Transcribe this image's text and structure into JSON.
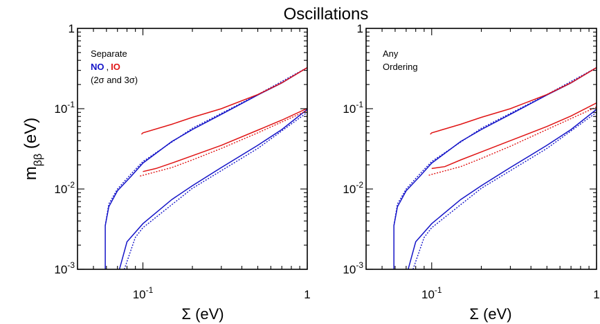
{
  "title": "Oscillations",
  "ylabel_main": "m",
  "ylabel_sub": "ββ",
  "ylabel_unit": " (eV)",
  "colors": {
    "NO": "#1414c8",
    "IO": "#e01414",
    "text": "#000000"
  },
  "panels": [
    {
      "legend_lines": [
        "Separate",
        "(2σ and 3σ)"
      ],
      "legend_no": "NO",
      "legend_comma": ",",
      "legend_io": "IO",
      "xlabel": "Σ (eV)"
    },
    {
      "legend_lines": [
        "Any",
        "Ordering"
      ],
      "xlabel": "Σ (eV)"
    }
  ],
  "chart_data": [
    {
      "type": "line",
      "title": "Oscillations",
      "xlabel": "Σ (eV)",
      "ylabel": "mββ (eV)",
      "xscale": "log",
      "yscale": "log",
      "xlim": [
        0.04,
        1.0
      ],
      "ylim": [
        0.001,
        1.0
      ],
      "x_tick_labels": [
        "10^-1",
        "1"
      ],
      "y_tick_labels": [
        "10^-3",
        "10^-2",
        "10^-1",
        "1"
      ],
      "legend": [
        "NO",
        "IO"
      ],
      "series": [
        {
          "name": "NO",
          "style": "solid",
          "x": [
            0.059,
            0.059,
            0.062,
            0.07,
            0.085,
            0.1,
            0.15,
            0.2,
            0.3,
            0.5,
            0.7,
            1.0
          ],
          "y": [
            0.001,
            0.0035,
            0.006,
            0.0095,
            0.0145,
            0.021,
            0.039,
            0.055,
            0.085,
            0.148,
            0.209,
            0.325
          ]
        },
        {
          "name": "NO",
          "style": "solid",
          "x": [
            0.072,
            0.08,
            0.1,
            0.15,
            0.2,
            0.3,
            0.5,
            0.7,
            1.0
          ],
          "y": [
            0.001,
            0.0022,
            0.0037,
            0.0074,
            0.011,
            0.0185,
            0.035,
            0.055,
            0.098
          ]
        },
        {
          "name": "NO",
          "style": "dotted",
          "x": [
            0.059,
            0.062,
            0.07,
            0.085,
            0.1,
            0.2,
            0.5,
            1.0
          ],
          "y": [
            0.0035,
            0.0065,
            0.01,
            0.0155,
            0.022,
            0.057,
            0.15,
            0.325
          ]
        },
        {
          "name": "NO",
          "style": "dotted",
          "x": [
            0.077,
            0.09,
            0.1,
            0.2,
            0.5,
            1.0
          ],
          "y": [
            0.001,
            0.0025,
            0.0033,
            0.0102,
            0.032,
            0.09
          ]
        },
        {
          "name": "IO",
          "style": "solid",
          "x": [
            0.098,
            0.1,
            0.15,
            0.2,
            0.3,
            0.5,
            0.7,
            1.0
          ],
          "y": [
            0.048,
            0.05,
            0.064,
            0.078,
            0.1,
            0.15,
            0.21,
            0.325
          ]
        },
        {
          "name": "IO",
          "style": "solid",
          "x": [
            0.1,
            0.12,
            0.15,
            0.2,
            0.3,
            0.5,
            0.7,
            1.0
          ],
          "y": [
            0.0165,
            0.018,
            0.021,
            0.026,
            0.035,
            0.054,
            0.072,
            0.101
          ]
        },
        {
          "name": "IO",
          "style": "dotted",
          "x": [
            0.096,
            0.1,
            0.15,
            0.2,
            0.3,
            0.5,
            1.0
          ],
          "y": [
            0.0145,
            0.0148,
            0.0185,
            0.023,
            0.032,
            0.05,
            0.095
          ]
        }
      ]
    },
    {
      "type": "line",
      "title": "Oscillations",
      "xlabel": "Σ (eV)",
      "ylabel": "mββ (eV)",
      "xscale": "log",
      "yscale": "log",
      "xlim": [
        0.04,
        1.0
      ],
      "ylim": [
        0.001,
        1.0
      ],
      "x_tick_labels": [
        "10^-1",
        "1"
      ],
      "y_tick_labels": [
        "10^-3",
        "10^-2",
        "10^-1",
        "1"
      ],
      "series": [
        {
          "name": "NO",
          "style": "solid",
          "x": [
            0.059,
            0.059,
            0.062,
            0.07,
            0.085,
            0.1,
            0.15,
            0.2,
            0.3,
            0.5,
            0.7,
            1.0
          ],
          "y": [
            0.001,
            0.0035,
            0.006,
            0.0095,
            0.0145,
            0.021,
            0.039,
            0.055,
            0.085,
            0.148,
            0.209,
            0.325
          ]
        },
        {
          "name": "NO",
          "style": "solid",
          "x": [
            0.072,
            0.08,
            0.1,
            0.15,
            0.2,
            0.3,
            0.5,
            0.7,
            1.0
          ],
          "y": [
            0.001,
            0.0022,
            0.0037,
            0.0074,
            0.011,
            0.0185,
            0.035,
            0.055,
            0.098
          ]
        },
        {
          "name": "NO",
          "style": "dotted",
          "x": [
            0.059,
            0.062,
            0.07,
            0.085,
            0.1,
            0.2,
            0.5,
            1.0
          ],
          "y": [
            0.0035,
            0.0065,
            0.01,
            0.0155,
            0.022,
            0.057,
            0.15,
            0.325
          ]
        },
        {
          "name": "NO",
          "style": "dotted",
          "x": [
            0.077,
            0.09,
            0.1,
            0.2,
            0.5,
            1.0
          ],
          "y": [
            0.001,
            0.0025,
            0.0033,
            0.0102,
            0.032,
            0.09
          ]
        },
        {
          "name": "IO",
          "style": "solid",
          "x": [
            0.098,
            0.1,
            0.15,
            0.2,
            0.3,
            0.5,
            0.7,
            1.0
          ],
          "y": [
            0.048,
            0.05,
            0.064,
            0.078,
            0.1,
            0.15,
            0.21,
            0.325
          ]
        },
        {
          "name": "IO",
          "style": "solid",
          "x": [
            0.1,
            0.12,
            0.15,
            0.2,
            0.3,
            0.5,
            0.7,
            1.0
          ],
          "y": [
            0.018,
            0.019,
            0.023,
            0.029,
            0.04,
            0.06,
            0.081,
            0.118
          ]
        },
        {
          "name": "IO",
          "style": "dotted",
          "x": [
            0.096,
            0.1,
            0.15,
            0.2,
            0.3,
            0.5,
            1.0
          ],
          "y": [
            0.0148,
            0.0152,
            0.019,
            0.024,
            0.034,
            0.055,
            0.105
          ]
        }
      ]
    }
  ]
}
